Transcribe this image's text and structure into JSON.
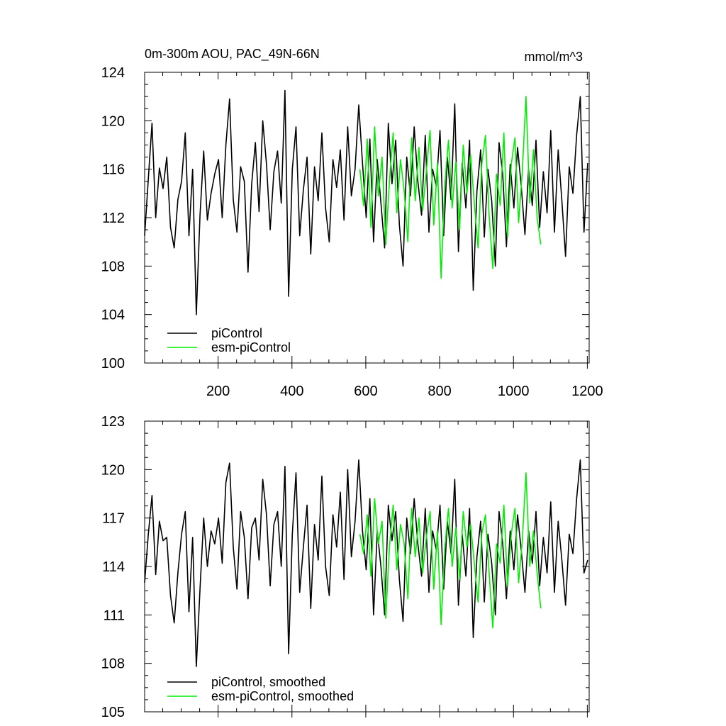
{
  "chart_data": [
    {
      "type": "line",
      "title": "0m-300m AOU, PAC_49N-66N",
      "units": "mmol/m^3",
      "xlim": [
        1,
        1205
      ],
      "ylim": [
        100,
        124
      ],
      "yticks": [
        100,
        104,
        108,
        112,
        116,
        120,
        124
      ],
      "xticks": [
        200,
        400,
        600,
        800,
        1000,
        1200
      ],
      "legend_placement": "lower-left",
      "series": [
        {
          "name": "piControl",
          "color": "#000000",
          "x_start": 1,
          "x_step": 10,
          "values": [
            110.5,
            115.2,
            119.8,
            112.0,
            116.1,
            114.4,
            117.0,
            111.2,
            109.5,
            113.5,
            115.0,
            119.0,
            110.5,
            116.0,
            104.0,
            112.2,
            117.5,
            111.8,
            114.0,
            115.6,
            116.8,
            112.0,
            118.0,
            121.8,
            113.5,
            110.8,
            116.2,
            115.0,
            107.5,
            114.8,
            118.2,
            112.5,
            120.0,
            116.4,
            111.0,
            115.8,
            117.5,
            113.2,
            122.5,
            105.5,
            116.0,
            119.5,
            110.5,
            114.3,
            117.0,
            109.0,
            116.2,
            113.4,
            119.0,
            112.8,
            110.0,
            116.8,
            114.5,
            117.6,
            111.8,
            119.5,
            113.8,
            116.0,
            121.3,
            116.5,
            112.0,
            118.5,
            110.0,
            116.8,
            113.2,
            109.5,
            119.8,
            114.8,
            118.4,
            111.4,
            108.0,
            117.0,
            113.8,
            119.5,
            115.0,
            112.2,
            118.8,
            110.8,
            116.0,
            114.6,
            119.2,
            110.5,
            117.0,
            113.5,
            121.4,
            109.2,
            116.5,
            112.8,
            118.4,
            106.0,
            114.2,
            117.6,
            110.4,
            116.0,
            113.4,
            108.0,
            118.2,
            115.6,
            109.6,
            116.4,
            112.8,
            117.8,
            114.6,
            110.6,
            116.0,
            113.0,
            118.4,
            111.2,
            115.8,
            112.4,
            119.2,
            110.8,
            117.6,
            113.4,
            108.8,
            116.2,
            114.0,
            118.8,
            122.0,
            110.8,
            116.5
          ]
        },
        {
          "name": "esm-piControl",
          "color": "#00ee00",
          "x_start": 584,
          "x_step": 10,
          "values": [
            116.0,
            113.0,
            118.5,
            111.2,
            119.5,
            113.8,
            117.0,
            109.8,
            115.0,
            119.0,
            112.4,
            116.8,
            114.2,
            110.0,
            118.6,
            113.4,
            117.8,
            112.6,
            115.8,
            119.2,
            111.4,
            116.5,
            107.0,
            114.8,
            118.4,
            112.8,
            116.6,
            111.0,
            118.0,
            114.0,
            117.2,
            113.2,
            109.5,
            116.4,
            118.8,
            112.2,
            107.8,
            115.6,
            113.0,
            119.0,
            110.4,
            116.4,
            118.6,
            111.6,
            115.8,
            122.0,
            113.2,
            117.6,
            112.0,
            109.8
          ]
        }
      ]
    },
    {
      "type": "line",
      "xlim": [
        1,
        1205
      ],
      "ylim": [
        105,
        123
      ],
      "yticks": [
        105,
        108,
        111,
        114,
        117,
        120,
        123
      ],
      "legend_placement": "lower-left",
      "series": [
        {
          "name": "piControl, smoothed",
          "color": "#000000",
          "x_start": 1,
          "x_step": 10,
          "values": [
            113.0,
            116.0,
            118.4,
            113.5,
            116.8,
            115.6,
            115.8,
            112.2,
            110.5,
            113.6,
            116.0,
            117.4,
            111.2,
            115.8,
            107.8,
            112.6,
            117.0,
            114.0,
            116.2,
            115.4,
            117.0,
            114.2,
            119.2,
            120.4,
            115.2,
            112.6,
            117.4,
            115.8,
            112.0,
            116.4,
            117.0,
            114.4,
            119.4,
            117.2,
            112.8,
            116.6,
            117.4,
            114.0,
            120.2,
            108.6,
            116.0,
            119.8,
            112.4,
            115.2,
            117.8,
            111.4,
            116.6,
            114.4,
            119.6,
            114.0,
            112.2,
            117.2,
            115.2,
            118.6,
            113.2,
            120.0,
            114.6,
            116.8,
            120.6,
            116.2,
            113.8,
            118.2,
            111.0,
            116.2,
            114.0,
            111.0,
            117.8,
            115.6,
            117.4,
            113.2,
            110.6,
            117.0,
            114.8,
            118.2,
            115.4,
            113.4,
            117.6,
            112.4,
            116.2,
            115.0,
            117.8,
            112.6,
            116.8,
            114.8,
            119.4,
            111.6,
            116.0,
            113.4,
            117.6,
            109.6,
            114.6,
            116.8,
            111.8,
            116.0,
            114.2,
            111.0,
            117.4,
            115.4,
            112.0,
            116.2,
            113.8,
            117.2,
            115.0,
            112.4,
            116.2,
            114.2,
            117.4,
            112.8,
            115.8,
            113.6,
            118.0,
            112.4,
            116.8,
            114.4,
            111.6,
            116.0,
            114.8,
            118.2,
            120.6,
            113.6,
            114.4
          ]
        },
        {
          "name": "esm-piControl, smoothed",
          "color": "#00ee00",
          "x_start": 584,
          "x_step": 10,
          "values": [
            116.0,
            114.8,
            117.2,
            113.4,
            118.2,
            115.4,
            116.8,
            110.8,
            115.2,
            117.8,
            113.8,
            116.6,
            115.4,
            112.0,
            117.6,
            114.6,
            117.0,
            113.6,
            115.8,
            117.4,
            112.6,
            116.2,
            110.4,
            115.2,
            117.6,
            114.0,
            116.4,
            113.2,
            117.4,
            115.2,
            116.6,
            114.2,
            111.8,
            116.0,
            117.2,
            113.6,
            110.2,
            115.4,
            114.2,
            117.8,
            112.8,
            116.0,
            117.6,
            113.0,
            115.6,
            119.8,
            114.0,
            116.2,
            113.6,
            111.4
          ]
        }
      ]
    }
  ]
}
